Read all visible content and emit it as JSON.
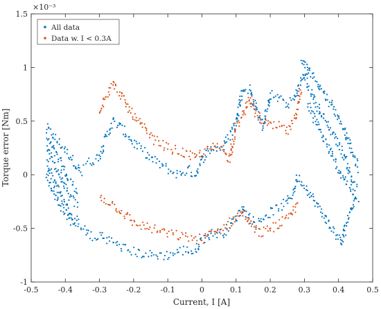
{
  "chart_data": {
    "type": "scatter",
    "title": "",
    "xlabel": "Current, I [A]",
    "ylabel": "Torque error [Nm]",
    "y_exponent_label": "×10⁻³",
    "y_scale_factor": 0.001,
    "xlim": [
      -0.5,
      0.5
    ],
    "ylim": [
      -1.0,
      1.5
    ],
    "x_ticks": [
      -0.5,
      -0.4,
      -0.3,
      -0.2,
      -0.1,
      0,
      0.1,
      0.2,
      0.3,
      0.4,
      0.5
    ],
    "x_tick_labels": [
      "-0.5",
      "-0.4",
      "-0.3",
      "-0.2",
      "-0.1",
      "0",
      "0.1",
      "0.2",
      "0.3",
      "0.4",
      "0.5"
    ],
    "y_ticks": [
      -1.0,
      -0.5,
      0,
      0.5,
      1.0,
      1.5
    ],
    "y_tick_labels": [
      "-1",
      "-0.5",
      "0",
      "0.5",
      "1",
      "1.5"
    ],
    "grid": false,
    "legend_position": "top-left",
    "series": [
      {
        "name": "All data",
        "color": "#0072BD",
        "branches": [
          [
            [
              -0.455,
              0.44
            ],
            [
              -0.42,
              0.3
            ],
            [
              -0.38,
              0.15
            ],
            [
              -0.35,
              0.0
            ]
          ],
          [
            [
              -0.455,
              0.35
            ],
            [
              -0.42,
              0.15
            ],
            [
              -0.39,
              -0.05
            ],
            [
              -0.36,
              -0.15
            ]
          ],
          [
            [
              -0.455,
              0.25
            ],
            [
              -0.42,
              0.02
            ],
            [
              -0.39,
              -0.2
            ],
            [
              -0.36,
              -0.3
            ]
          ],
          [
            [
              -0.455,
              0.12
            ],
            [
              -0.42,
              -0.15
            ],
            [
              -0.39,
              -0.35
            ],
            [
              -0.36,
              -0.45
            ]
          ],
          [
            [
              -0.455,
              0.0
            ],
            [
              -0.42,
              -0.25
            ],
            [
              -0.38,
              -0.45
            ],
            [
              -0.33,
              -0.55
            ],
            [
              -0.3,
              -0.6
            ]
          ],
          [
            [
              -0.345,
              0.1
            ],
            [
              -0.32,
              0.13
            ],
            [
              -0.3,
              0.18
            ],
            [
              -0.28,
              0.35
            ],
            [
              -0.26,
              0.5
            ],
            [
              -0.24,
              0.45
            ],
            [
              -0.2,
              0.3
            ],
            [
              -0.15,
              0.15
            ],
            [
              -0.1,
              0.05
            ],
            [
              -0.07,
              0.0
            ],
            [
              -0.04,
              0.05
            ],
            [
              -0.02,
              0.0
            ],
            [
              0.0,
              0.15
            ],
            [
              0.03,
              0.25
            ],
            [
              0.06,
              0.25
            ],
            [
              0.08,
              0.35
            ],
            [
              0.1,
              0.5
            ],
            [
              0.12,
              0.8
            ],
            [
              0.14,
              0.8
            ],
            [
              0.16,
              0.6
            ],
            [
              0.18,
              0.45
            ],
            [
              0.2,
              0.75
            ],
            [
              0.23,
              0.7
            ],
            [
              0.25,
              0.65
            ],
            [
              0.27,
              0.7
            ],
            [
              0.3,
              0.95
            ],
            [
              0.32,
              1.0
            ]
          ],
          [
            [
              -0.3,
              -0.55
            ],
            [
              -0.25,
              -0.65
            ],
            [
              -0.2,
              -0.72
            ],
            [
              -0.15,
              -0.75
            ],
            [
              -0.1,
              -0.75
            ],
            [
              -0.05,
              -0.7
            ],
            [
              -0.02,
              -0.72
            ],
            [
              0.0,
              -0.6
            ],
            [
              0.03,
              -0.55
            ],
            [
              0.06,
              -0.55
            ],
            [
              0.1,
              -0.4
            ],
            [
              0.12,
              -0.3
            ],
            [
              0.14,
              -0.4
            ],
            [
              0.16,
              -0.45
            ],
            [
              0.18,
              -0.4
            ],
            [
              0.2,
              -0.35
            ],
            [
              0.23,
              -0.3
            ],
            [
              0.25,
              -0.25
            ],
            [
              0.27,
              -0.15
            ],
            [
              0.28,
              -0.02
            ],
            [
              0.3,
              -0.1
            ],
            [
              0.33,
              -0.25
            ],
            [
              0.36,
              -0.4
            ],
            [
              0.39,
              -0.55
            ],
            [
              0.41,
              -0.65
            ]
          ],
          [
            [
              0.29,
              1.07
            ],
            [
              0.33,
              0.9
            ],
            [
              0.36,
              0.75
            ],
            [
              0.39,
              0.6
            ],
            [
              0.42,
              0.4
            ],
            [
              0.44,
              0.2
            ],
            [
              0.46,
              0.05
            ]
          ],
          [
            [
              0.3,
              0.9
            ],
            [
              0.33,
              0.7
            ],
            [
              0.36,
              0.5
            ],
            [
              0.39,
              0.35
            ],
            [
              0.42,
              0.15
            ],
            [
              0.44,
              -0.05
            ],
            [
              0.46,
              -0.1
            ]
          ],
          [
            [
              0.31,
              0.65
            ],
            [
              0.34,
              0.45
            ],
            [
              0.37,
              0.25
            ],
            [
              0.4,
              0.05
            ],
            [
              0.43,
              -0.1
            ],
            [
              0.45,
              -0.2
            ]
          ],
          [
            [
              0.41,
              -0.65
            ],
            [
              0.42,
              -0.5
            ],
            [
              0.44,
              -0.3
            ],
            [
              0.45,
              -0.22
            ],
            [
              0.46,
              -0.25
            ]
          ]
        ]
      },
      {
        "name": "Data w. I < 0.3A",
        "color": "#D95319",
        "branches": [
          [
            [
              -0.3,
              0.6
            ],
            [
              -0.28,
              0.75
            ],
            [
              -0.26,
              0.85
            ],
            [
              -0.24,
              0.75
            ],
            [
              -0.2,
              0.55
            ],
            [
              -0.15,
              0.35
            ],
            [
              -0.1,
              0.25
            ],
            [
              -0.05,
              0.2
            ],
            [
              -0.02,
              0.15
            ],
            [
              0.0,
              0.2
            ],
            [
              0.03,
              0.25
            ],
            [
              0.06,
              0.25
            ],
            [
              0.08,
              0.15
            ],
            [
              0.1,
              0.45
            ],
            [
              0.12,
              0.55
            ],
            [
              0.14,
              0.72
            ],
            [
              0.16,
              0.55
            ],
            [
              0.18,
              0.5
            ],
            [
              0.2,
              0.45
            ],
            [
              0.23,
              0.45
            ],
            [
              0.25,
              0.4
            ],
            [
              0.27,
              0.5
            ],
            [
              0.29,
              0.8
            ]
          ],
          [
            [
              -0.3,
              -0.2
            ],
            [
              -0.25,
              -0.3
            ],
            [
              -0.2,
              -0.45
            ],
            [
              -0.15,
              -0.5
            ],
            [
              -0.1,
              -0.55
            ],
            [
              -0.05,
              -0.58
            ],
            [
              0.0,
              -0.6
            ],
            [
              0.03,
              -0.55
            ],
            [
              0.06,
              -0.5
            ],
            [
              0.1,
              -0.4
            ],
            [
              0.12,
              -0.35
            ],
            [
              0.14,
              -0.45
            ],
            [
              0.17,
              -0.55
            ],
            [
              0.2,
              -0.5
            ],
            [
              0.23,
              -0.45
            ],
            [
              0.26,
              -0.4
            ],
            [
              0.28,
              -0.25
            ]
          ]
        ]
      }
    ]
  }
}
